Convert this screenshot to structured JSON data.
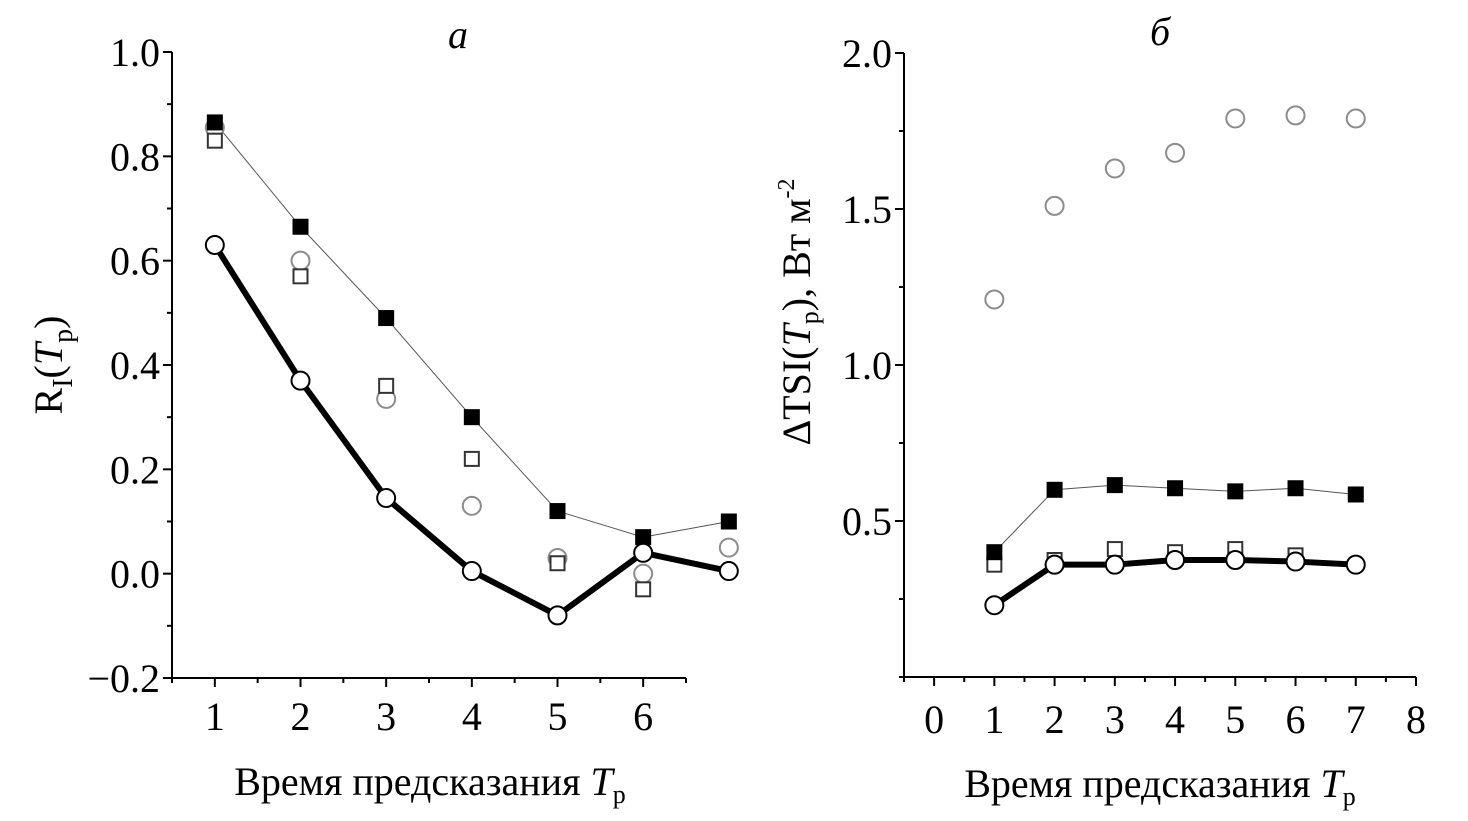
{
  "chart_data": [
    {
      "type": "line",
      "panel_label": "а",
      "title": "",
      "xlabel": "Время предсказания",
      "xlabel_symbol": "T",
      "xlabel_subscript": "p",
      "ylabel_main": "R",
      "ylabel_sub": "I",
      "ylabel_open": "(",
      "ylabel_symbol": "T",
      "ylabel_symbol_sub": "p",
      "ylabel_close": ")",
      "xlim": [
        0.5,
        6.5
      ],
      "ylim": [
        -0.2,
        1.0
      ],
      "x_ticks": [
        1,
        2,
        3,
        4,
        5,
        6
      ],
      "x_tick_labels": [
        "1",
        "2",
        "3",
        "4",
        "5",
        "6"
      ],
      "x_minor_step": 0.5,
      "y_ticks": [
        -0.2,
        0.0,
        0.2,
        0.4,
        0.6,
        0.8,
        1.0
      ],
      "y_tick_labels": [
        "−0.2",
        "0.0",
        "0.2",
        "0.4",
        "0.6",
        "0.8",
        "1.0"
      ],
      "y_minor_step": 0.1,
      "grid": false,
      "legend": "none",
      "series": [
        {
          "name": "gray-circles",
          "marker": "circle-open",
          "color": "#8c8c8c",
          "line": false,
          "x": [
            1,
            2,
            3,
            4,
            5,
            6,
            7
          ],
          "values": [
            0.855,
            0.6,
            0.335,
            0.13,
            0.03,
            0.0,
            0.05
          ]
        },
        {
          "name": "open-squares",
          "marker": "square-open",
          "color": "#333333",
          "line": false,
          "x": [
            1,
            2,
            3,
            4,
            5,
            6
          ],
          "values": [
            0.83,
            0.57,
            0.36,
            0.22,
            0.02,
            -0.03
          ]
        },
        {
          "name": "filled-squares",
          "marker": "square-filled",
          "color": "#000000",
          "line": "thin",
          "x": [
            1,
            2,
            3,
            4,
            5,
            6,
            7
          ],
          "values": [
            0.865,
            0.665,
            0.49,
            0.3,
            0.12,
            0.07,
            0.1
          ]
        },
        {
          "name": "open-circles",
          "marker": "circle-white",
          "color": "#000000",
          "line": "thick",
          "x": [
            1,
            2,
            3,
            4,
            5,
            6,
            7
          ],
          "values": [
            0.63,
            0.37,
            0.145,
            0.005,
            -0.08,
            0.04,
            0.005
          ]
        }
      ]
    },
    {
      "type": "line",
      "panel_label": "б",
      "title": "",
      "xlabel": "Время предсказания",
      "xlabel_symbol": "T",
      "xlabel_subscript": "p",
      "ylabel_main": "ΔTSI(",
      "ylabel_symbol": "T",
      "ylabel_symbol_sub": "p",
      "ylabel_close": "),  Вт м",
      "ylabel_sup": "-2",
      "xlim": [
        -0.5,
        8.0
      ],
      "ylim": [
        0.0,
        2.0
      ],
      "x_ticks": [
        0,
        1,
        2,
        3,
        4,
        5,
        6,
        7,
        8
      ],
      "x_tick_labels": [
        "0",
        "1",
        "2",
        "3",
        "4",
        "5",
        "6",
        "7",
        "8"
      ],
      "x_minor_step": 0.5,
      "y_ticks": [
        0.5,
        1.0,
        1.5,
        2.0
      ],
      "y_tick_labels": [
        "0.5",
        "1.0",
        "1.5",
        "2.0"
      ],
      "y_minor_step": 0.25,
      "grid": false,
      "legend": "none",
      "series": [
        {
          "name": "gray-circles",
          "marker": "circle-open",
          "color": "#8c8c8c",
          "line": false,
          "x": [
            1,
            2,
            3,
            4,
            5,
            6,
            7
          ],
          "values": [
            1.21,
            1.51,
            1.63,
            1.68,
            1.79,
            1.8,
            1.79
          ]
        },
        {
          "name": "filled-squares",
          "marker": "square-filled",
          "color": "#000000",
          "line": "thin",
          "x": [
            1,
            2,
            3,
            4,
            5,
            6,
            7
          ],
          "values": [
            0.4,
            0.6,
            0.615,
            0.605,
            0.595,
            0.605,
            0.585
          ]
        },
        {
          "name": "open-circles",
          "marker": "circle-white",
          "color": "#000000",
          "line": "thick",
          "x": [
            1,
            2,
            3,
            4,
            5,
            6,
            7
          ],
          "values": [
            0.23,
            0.36,
            0.36,
            0.375,
            0.375,
            0.37,
            0.36
          ]
        },
        {
          "name": "open-squares",
          "marker": "square-open",
          "color": "#333333",
          "line": false,
          "x": [
            1,
            2,
            3,
            4,
            5,
            6
          ],
          "values": [
            0.36,
            0.375,
            0.41,
            0.4,
            0.41,
            0.39
          ]
        }
      ]
    }
  ]
}
